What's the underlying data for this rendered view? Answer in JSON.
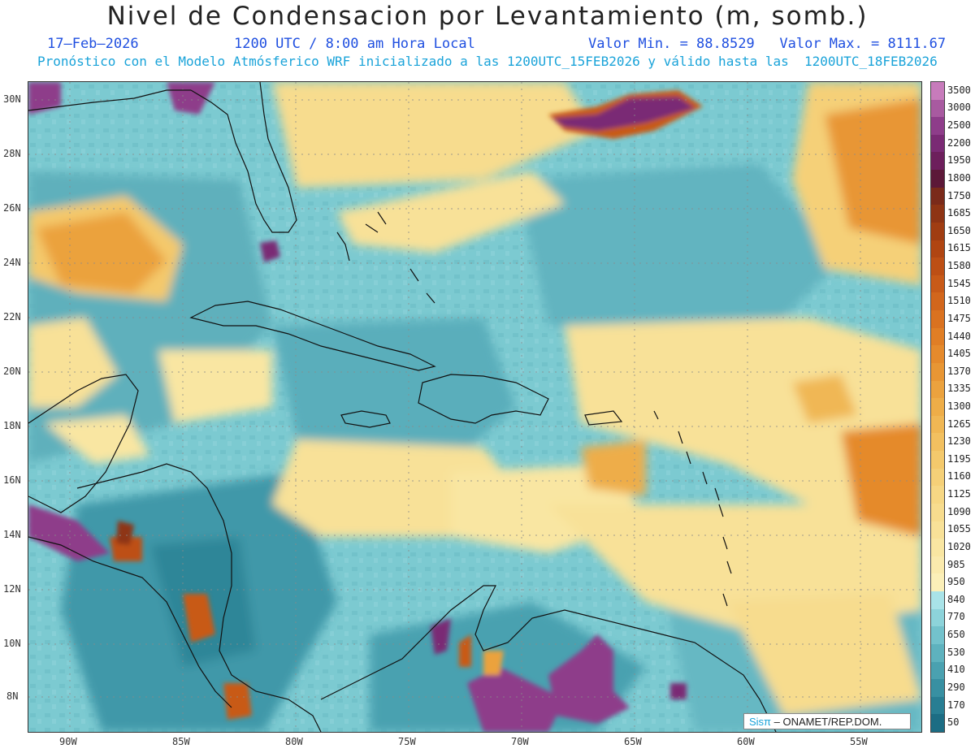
{
  "header": {
    "title": "Nivel de Condensacion por Levantamiento (m, somb.)",
    "date": "17–Feb–2026",
    "time": "1200 UTC / 8:00 am Hora Local",
    "minmax": "Valor Min. = 88.8529   Valor Max. = 8111.67",
    "model_line": "Pronóstico con el Modelo Atmósferico WRF inicializado a las 1200UTC_15FEB2026 y válido hasta las  1200UTC_18FEB2026"
  },
  "axes": {
    "lat_labels": [
      "30N",
      "28N",
      "26N",
      "24N",
      "22N",
      "20N",
      "18N",
      "16N",
      "14N",
      "12N",
      "10N",
      "8N"
    ],
    "lon_labels": [
      "90W",
      "85W",
      "80W",
      "75W",
      "70W",
      "65W",
      "60W",
      "55W"
    ]
  },
  "colorbar": {
    "labels": [
      "3500",
      "3000",
      "2500",
      "2200",
      "1950",
      "1800",
      "1750",
      "1685",
      "1650",
      "1615",
      "1580",
      "1545",
      "1510",
      "1475",
      "1440",
      "1405",
      "1370",
      "1335",
      "1300",
      "1265",
      "1230",
      "1195",
      "1160",
      "1125",
      "1090",
      "1055",
      "1020",
      "985",
      "950",
      "840",
      "770",
      "650",
      "530",
      "410",
      "290",
      "170",
      "50"
    ],
    "colors": [
      "#c77bbb",
      "#a85aa0",
      "#8e3d8a",
      "#7a2a74",
      "#6d1f5c",
      "#5c1838",
      "#7a2a1a",
      "#8e3414",
      "#a03d12",
      "#b04512",
      "#bd4f15",
      "#c85a18",
      "#d2661c",
      "#da7220",
      "#e07e25",
      "#e58a2c",
      "#e89634",
      "#eba23e",
      "#eead48",
      "#f0b754",
      "#f2c060",
      "#f4c96c",
      "#f5d078",
      "#f6d784",
      "#f7dc8e",
      "#f8e198",
      "#f9e6a2",
      "#faeaad",
      "#fbefb8",
      "#a9e3e8",
      "#8dd3da",
      "#73c2cc",
      "#5eb2be",
      "#4aa1b0",
      "#3890a2",
      "#287e93",
      "#1c6d84"
    ]
  },
  "credit": {
    "sis": "Sisπ",
    "text": "– ONAMET/REP.DOM."
  }
}
